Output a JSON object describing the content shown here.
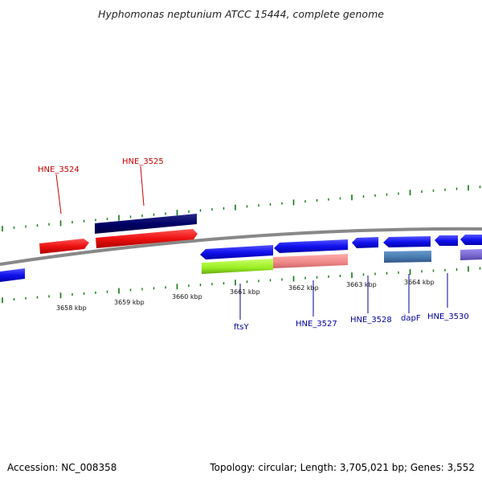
{
  "title": "Hyphomonas neptunium ATCC 15444, complete genome",
  "footer": {
    "accession": "Accession: NC_008358",
    "summary": "Topology: circular; Length: 3,705,021 bp; Genes: 3,552"
  },
  "scale_ticks": [
    "3658 kbp",
    "3659 kbp",
    "3660 kbp",
    "3661 kbp",
    "3662 kbp",
    "3663 kbp",
    "3664 kbp"
  ],
  "gene_labels": [
    {
      "text": "HNE_3524",
      "color": "#cc0000"
    },
    {
      "text": "HNE_3525",
      "color": "#cc0000"
    },
    {
      "text": "ftsY",
      "color": "#00009a"
    },
    {
      "text": "HNE_3527",
      "color": "#00009a"
    },
    {
      "text": "HNE_3528",
      "color": "#00009a"
    },
    {
      "text": "dapF",
      "color": "#00009a"
    },
    {
      "text": "HNE_3530",
      "color": "#00009a"
    }
  ],
  "colors": {
    "forward_cds": "#ee1111",
    "reverse_cds": "#1111ee",
    "dark_feature": "#000066",
    "green_feature": "#99ee22",
    "pink_feature": "#ee8888",
    "steel_feature": "#4477aa",
    "purple_feature": "#7766cc",
    "backbone": "#888888",
    "tick": "#117711"
  }
}
